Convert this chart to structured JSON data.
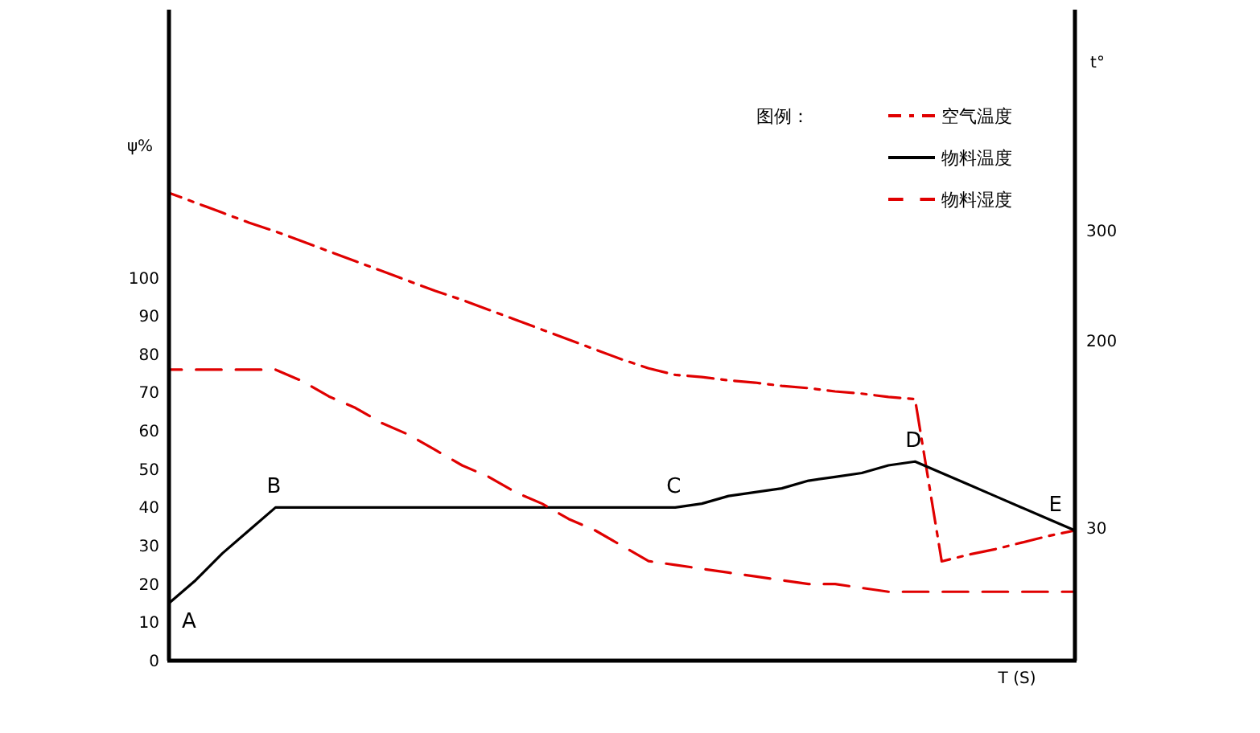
{
  "chart_data": {
    "type": "line",
    "xlabel": "T (S)",
    "ylabel": "ψ%",
    "y2label": "t°",
    "legend_title": "图例：",
    "legend": "top right",
    "categories": [
      null,
      null,
      null,
      null,
      null,
      null,
      null,
      null,
      null,
      null,
      null,
      null,
      null,
      null,
      null,
      null,
      null,
      null,
      null,
      null,
      null,
      null,
      null,
      null,
      null,
      null,
      null,
      null,
      null,
      null,
      null,
      null,
      null,
      null,
      null
    ],
    "ylim": [
      0,
      170
    ],
    "yticks": [
      0,
      10,
      20,
      30,
      40,
      50,
      60,
      70,
      80,
      90,
      100
    ],
    "y2lim": [
      -90,
      500
    ],
    "y2ticks": [
      30,
      200,
      300
    ],
    "series": [
      {
        "name": "空气温度",
        "color": "#e00000",
        "line_style": "dashdot",
        "axis": "y2",
        "values": [
          334,
          325,
          316,
          307,
          299,
          290,
          281,
          272,
          263,
          254,
          245,
          237,
          228,
          219,
          210,
          201,
          192,
          183,
          175,
          169,
          167,
          164,
          162,
          159,
          157,
          154,
          152,
          149,
          147,
          0,
          6,
          11,
          17,
          23,
          28
        ]
      },
      {
        "name": "物料温度",
        "color": "#000000",
        "line_style": "solid",
        "values": [
          15,
          21,
          28,
          34,
          40,
          40,
          40,
          40,
          40,
          40,
          40,
          40,
          40,
          40,
          40,
          40,
          40,
          40,
          40,
          40,
          41,
          43,
          44,
          45,
          47,
          48,
          49,
          51,
          52,
          49,
          46,
          43,
          40,
          37,
          34
        ],
        "value_labels": [
          "A",
          null,
          null,
          null,
          "B",
          null,
          null,
          null,
          null,
          null,
          null,
          null,
          null,
          null,
          null,
          null,
          null,
          null,
          null,
          "C",
          null,
          null,
          null,
          null,
          null,
          null,
          null,
          null,
          "D",
          null,
          null,
          null,
          null,
          null,
          "E"
        ]
      },
      {
        "name": "物料湿度",
        "color": "#e00000",
        "line_style": "dashed",
        "values": [
          76,
          76,
          76,
          76,
          76,
          73,
          69,
          66,
          62,
          59,
          55,
          51,
          48,
          44,
          41,
          37,
          34,
          30,
          26,
          25,
          24,
          23,
          22,
          21,
          20,
          20,
          19,
          18,
          18,
          18,
          18,
          18,
          18,
          18,
          18
        ]
      }
    ]
  }
}
